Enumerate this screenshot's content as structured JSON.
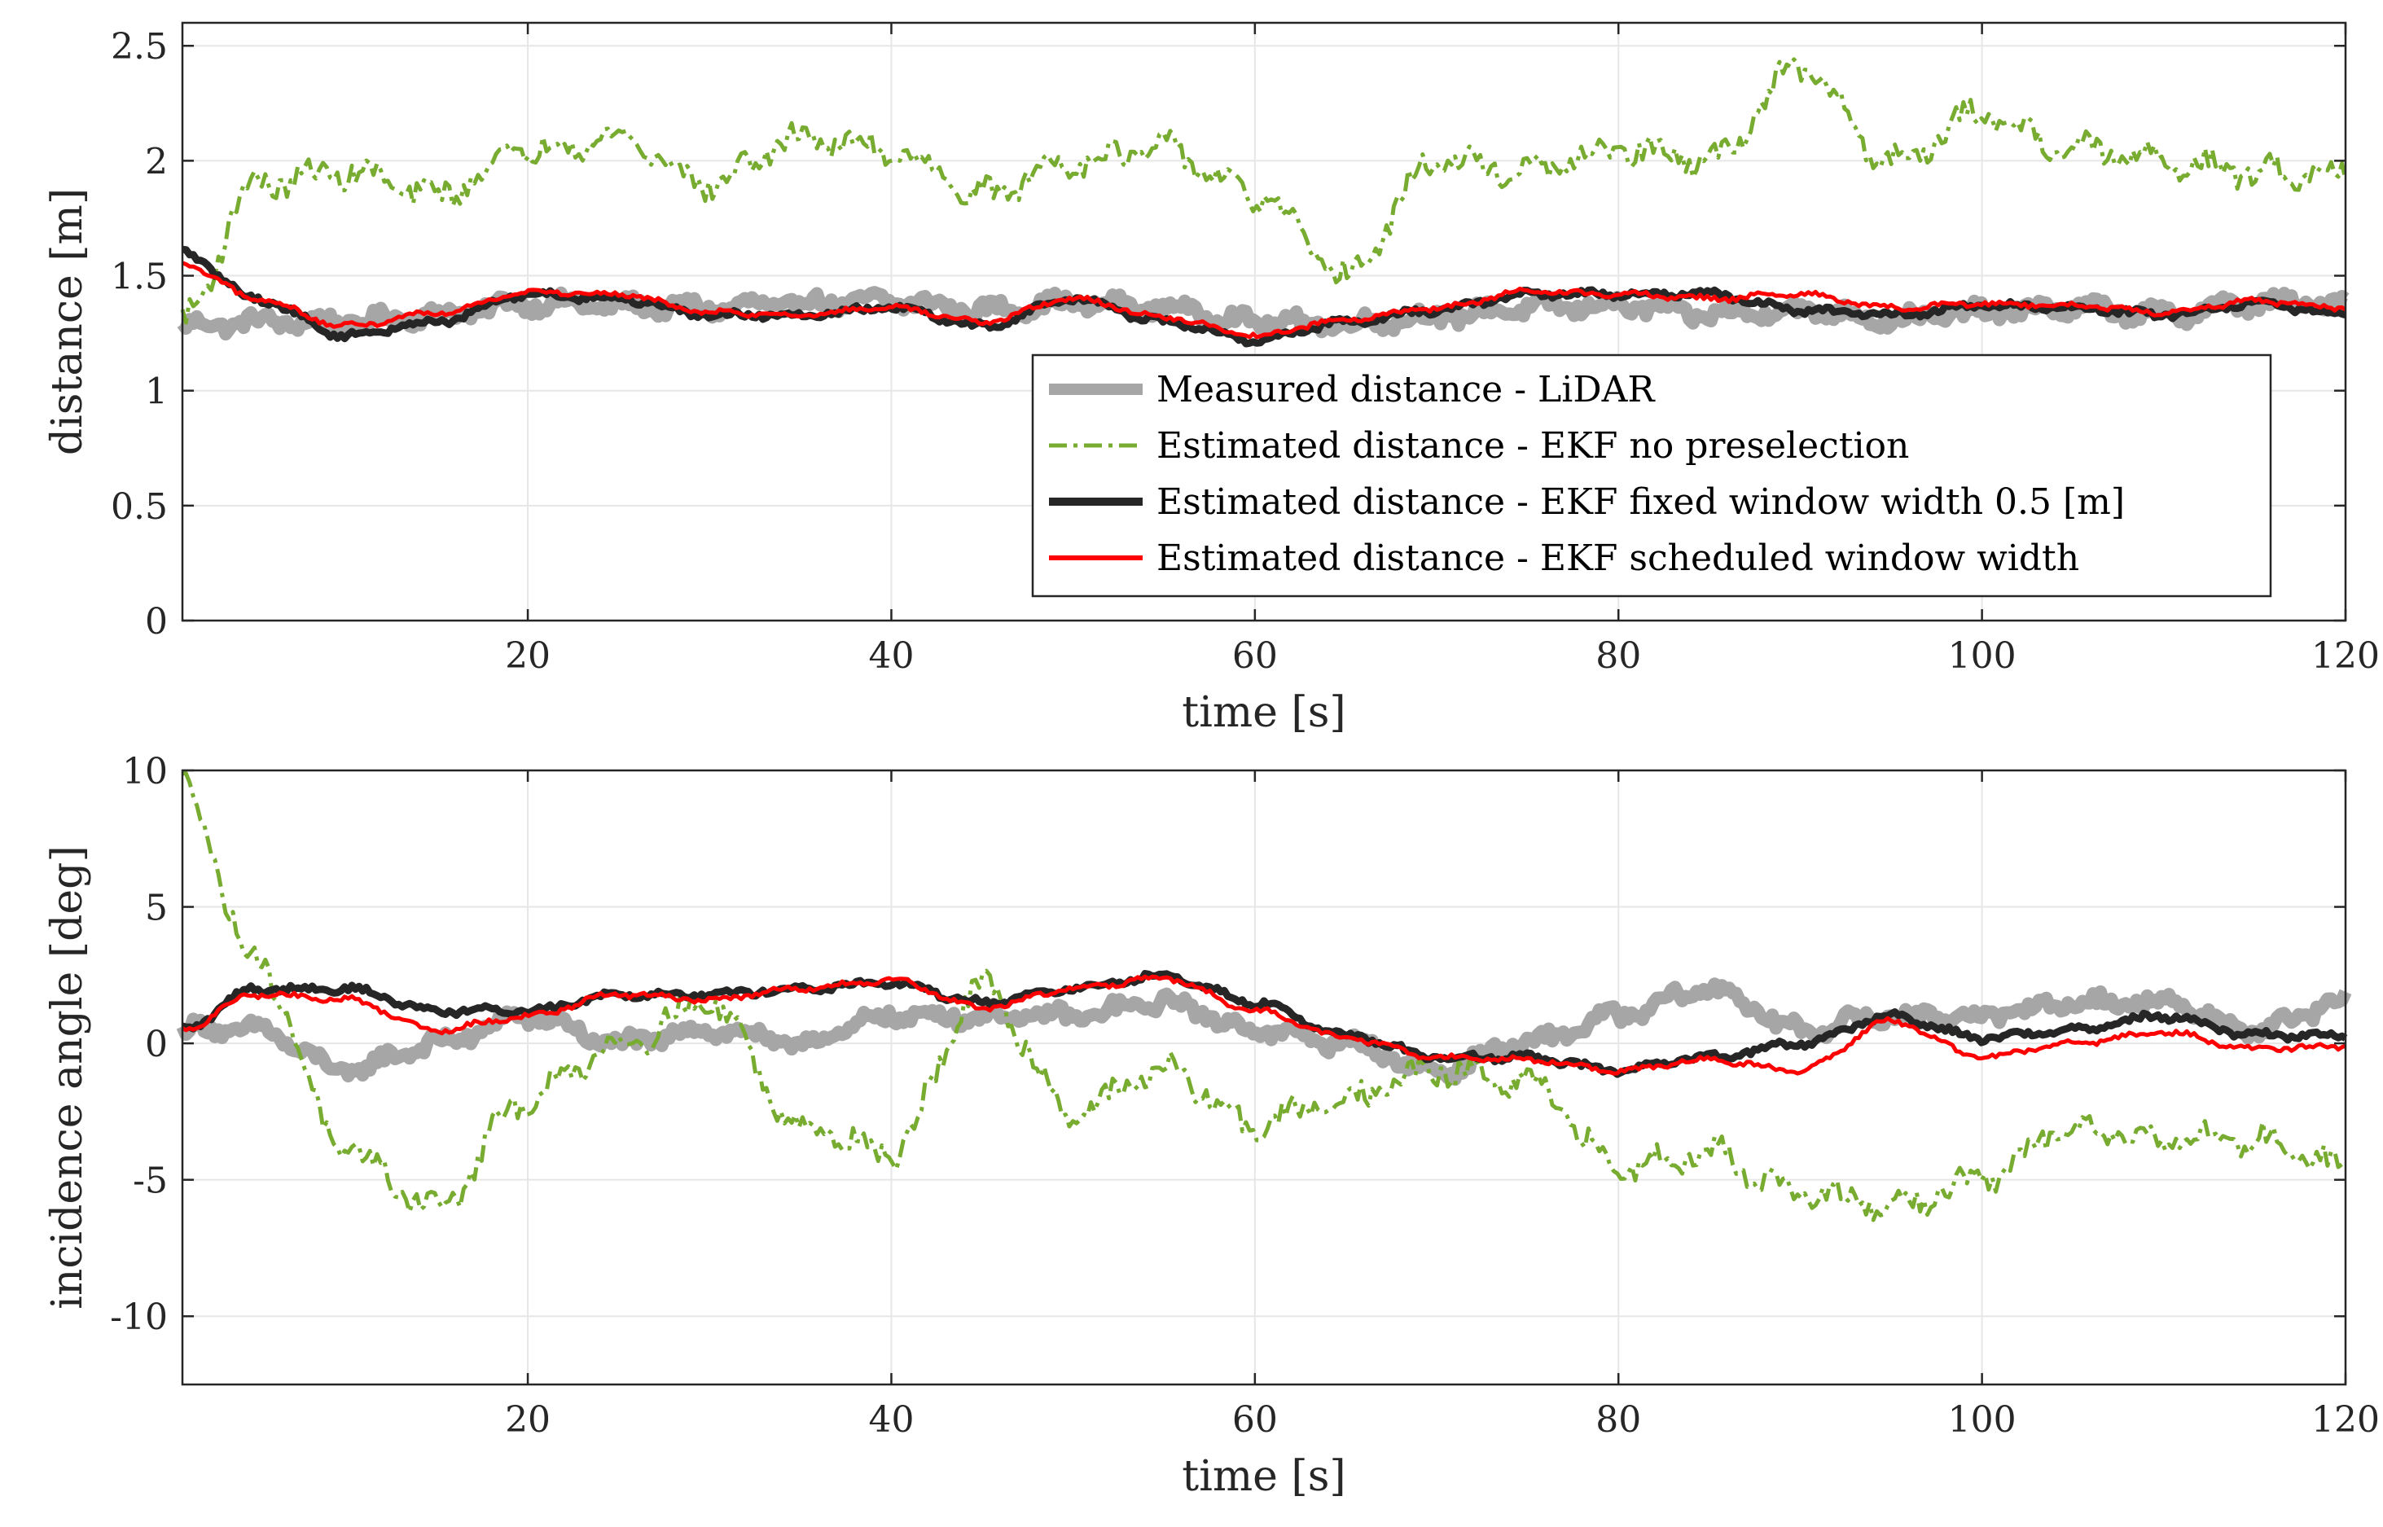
{
  "colors": {
    "lidar": "#a6a6a6",
    "ekf_no_preselection": "#77ac30",
    "ekf_fixed": "#262626",
    "ekf_scheduled": "#ff0000",
    "grid": "#e6e6e6",
    "axes": "#262626"
  },
  "chart_data": [
    {
      "type": "line",
      "id": "distance",
      "xlabel": "time [s]",
      "ylabel": "distance [m]",
      "xlim": [
        1,
        120
      ],
      "ylim": [
        0,
        2.6
      ],
      "xticks": [
        20,
        40,
        60,
        80,
        100,
        120
      ],
      "xtick_labels": [
        "20",
        "40",
        "60",
        "80",
        "100",
        "120"
      ],
      "yticks": [
        0,
        0.5,
        1,
        1.5,
        2,
        2.5
      ],
      "ytick_labels": [
        "0",
        "0.5",
        "1",
        "1.5",
        "2",
        "2.5"
      ],
      "grid": true,
      "legend": {
        "position": "bottom-right",
        "entries": [
          "Measured distance - LiDAR",
          "Estimated distance - EKF no preselection",
          "Estimated distance - EKF fixed window width 0.5 [m]",
          "Estimated distance - EKF scheduled window width"
        ]
      },
      "x": [
        1,
        5,
        10,
        15,
        20,
        25,
        30,
        35,
        40,
        45,
        50,
        55,
        60,
        65,
        70,
        75,
        80,
        85,
        90,
        95,
        100,
        105,
        110,
        115,
        120
      ],
      "series": [
        {
          "name": "Measured distance - LiDAR",
          "style": "thick-solid",
          "values": [
            1.28,
            1.3,
            1.3,
            1.33,
            1.38,
            1.37,
            1.36,
            1.38,
            1.39,
            1.35,
            1.38,
            1.36,
            1.3,
            1.29,
            1.32,
            1.36,
            1.37,
            1.33,
            1.35,
            1.31,
            1.34,
            1.36,
            1.33,
            1.38,
            1.38
          ]
        },
        {
          "name": "Estimated distance - EKF no preselection",
          "style": "dash-dot",
          "values": [
            1.3,
            1.9,
            1.95,
            1.85,
            2.05,
            2.1,
            1.9,
            2.1,
            2.05,
            1.85,
            2.0,
            2.05,
            1.85,
            1.5,
            2.0,
            1.95,
            2.05,
            2.0,
            2.4,
            2.0,
            2.2,
            2.05,
            2.0,
            1.95,
            1.95
          ]
        },
        {
          "name": "Estimated distance - EKF fixed window width 0.5 [m]",
          "style": "thick-solid",
          "values": [
            1.6,
            1.4,
            1.24,
            1.3,
            1.42,
            1.4,
            1.33,
            1.33,
            1.36,
            1.28,
            1.4,
            1.3,
            1.22,
            1.3,
            1.35,
            1.42,
            1.42,
            1.42,
            1.35,
            1.33,
            1.37,
            1.36,
            1.33,
            1.38,
            1.33
          ]
        },
        {
          "name": "Estimated distance - EKF scheduled window width",
          "style": "solid",
          "values": [
            1.55,
            1.4,
            1.28,
            1.34,
            1.43,
            1.42,
            1.34,
            1.33,
            1.36,
            1.3,
            1.4,
            1.32,
            1.24,
            1.31,
            1.36,
            1.43,
            1.42,
            1.4,
            1.42,
            1.36,
            1.38,
            1.37,
            1.34,
            1.39,
            1.36
          ]
        }
      ]
    },
    {
      "type": "line",
      "id": "incidence",
      "xlabel": "time [s]",
      "ylabel": "incidence angle [deg]",
      "xlim": [
        1,
        120
      ],
      "ylim": [
        -12.5,
        10
      ],
      "xticks": [
        20,
        40,
        60,
        80,
        100,
        120
      ],
      "xtick_labels": [
        "20",
        "40",
        "60",
        "80",
        "100",
        "120"
      ],
      "yticks": [
        -10,
        -5,
        0,
        5,
        10
      ],
      "ytick_labels": [
        "-10",
        "-5",
        "0",
        "5",
        "10"
      ],
      "grid": true,
      "x": [
        1,
        5,
        10,
        15,
        20,
        25,
        30,
        35,
        40,
        45,
        50,
        55,
        60,
        65,
        70,
        75,
        80,
        85,
        90,
        95,
        100,
        105,
        110,
        115,
        120
      ],
      "series": [
        {
          "name": "Measured distance - LiDAR",
          "style": "thick-solid",
          "values": [
            0.5,
            0.5,
            -1.0,
            0.0,
            1.0,
            0.0,
            0.5,
            0.0,
            1.0,
            1.0,
            1.0,
            1.5,
            0.5,
            0.0,
            -1.0,
            0.0,
            1.0,
            2.0,
            0.5,
            1.0,
            1.0,
            1.5,
            1.5,
            0.5,
            1.5
          ]
        },
        {
          "name": "Estimated distance - EKF no preselection",
          "style": "dash-dot",
          "values": [
            9.5,
            3.0,
            -4.0,
            -6.0,
            -2.0,
            0.0,
            1.5,
            -3.0,
            -4.0,
            2.0,
            -2.5,
            -1.0,
            -3.0,
            -2.0,
            -1.0,
            -1.5,
            -4.5,
            -4.0,
            -5.5,
            -6.0,
            -5.0,
            -3.0,
            -3.5,
            -3.5,
            -4.5
          ]
        },
        {
          "name": "Estimated distance - EKF fixed window width 0.5 [m]",
          "style": "thick-solid",
          "values": [
            0.5,
            2.0,
            2.0,
            1.2,
            1.2,
            1.8,
            1.8,
            2.0,
            2.2,
            1.5,
            2.0,
            2.5,
            1.5,
            0.3,
            -0.5,
            -0.5,
            -1.0,
            -0.5,
            0.0,
            1.0,
            0.2,
            0.5,
            1.0,
            0.3,
            0.3
          ]
        },
        {
          "name": "Estimated distance - EKF scheduled window width",
          "style": "solid",
          "values": [
            0.5,
            1.8,
            1.6,
            0.5,
            1.0,
            1.8,
            1.6,
            2.0,
            2.3,
            1.3,
            2.0,
            2.4,
            1.2,
            0.2,
            -0.5,
            -0.6,
            -1.0,
            -0.6,
            -1.0,
            0.8,
            -0.5,
            0.0,
            0.4,
            -0.2,
            -0.1
          ]
        }
      ]
    }
  ]
}
